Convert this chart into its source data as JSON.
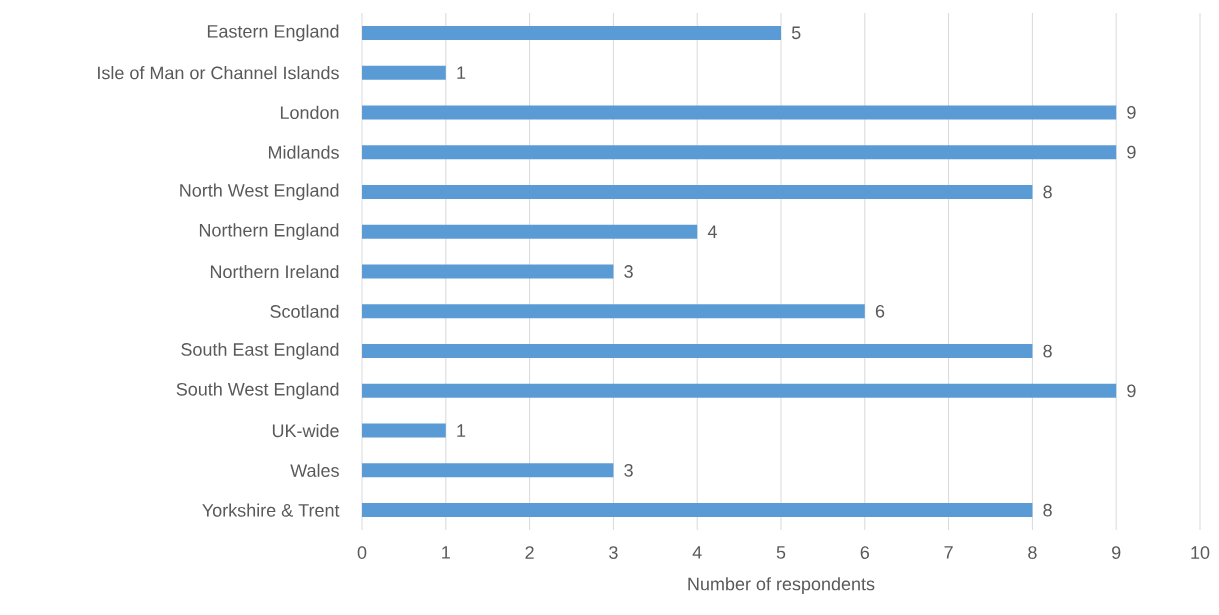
{
  "chart_data": {
    "type": "bar",
    "orientation": "horizontal",
    "xlabel": "Number of respondents",
    "categories": [
      "Eastern England",
      "Isle of Man or Channel Islands",
      "London",
      "Midlands",
      "North West England",
      "Northern England",
      "Northern Ireland",
      "Scotland",
      "South East England",
      "South West England",
      "UK-wide",
      "Wales",
      "Yorkshire & Trent"
    ],
    "values": [
      5,
      1,
      9,
      9,
      8,
      4,
      3,
      6,
      8,
      9,
      1,
      3,
      8
    ],
    "color": "#5b9bd5",
    "xlim": [
      0,
      10
    ],
    "xticks": [
      0,
      1,
      2,
      3,
      4,
      5,
      6,
      7,
      8,
      9,
      10
    ],
    "grid": "x",
    "data_labels": true
  }
}
